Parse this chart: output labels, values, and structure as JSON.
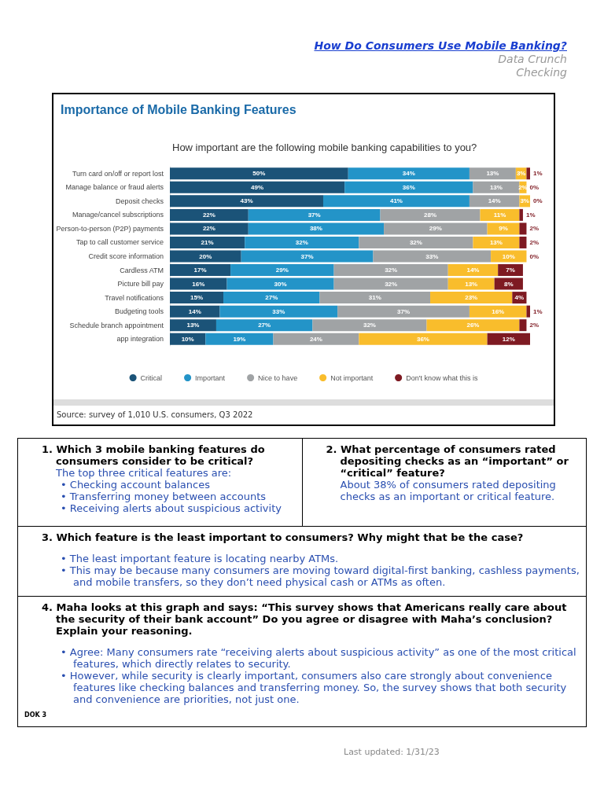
{
  "chart_data": {
    "type": "bar",
    "orientation": "horizontal",
    "stacked": true,
    "title": "Importance of Mobile Banking Features",
    "subtitle": "How important are the following mobile banking capabilities to you?",
    "categories": [
      "Turn card on/off or report lost",
      "Manage balance or fraud alerts",
      "Deposit checks",
      "Manage/cancel subscriptions",
      "Person-to-person (P2P) payments",
      "Tap to call customer service",
      "Credit score information",
      "Cardless ATM",
      "Picture bill pay",
      "Travel notifications",
      "Budgeting tools",
      "Schedule branch appointment",
      "app integration"
    ],
    "series": [
      {
        "name": "Critical",
        "color": "#1b5378",
        "values": [
          50,
          49,
          43,
          22,
          22,
          21,
          20,
          17,
          16,
          15,
          14,
          13,
          10
        ],
        "value_labels": [
          "50%",
          "49%",
          "43%",
          "22%",
          "22%",
          "21%",
          "20%",
          "17%",
          "16%",
          "15%",
          "14%",
          "13%",
          "10%"
        ]
      },
      {
        "name": "Important",
        "color": "#2394c8",
        "values": [
          34,
          36,
          41,
          37,
          38,
          32,
          37,
          29,
          30,
          27,
          33,
          27,
          19
        ],
        "value_labels": [
          "34%",
          "36%",
          "41%",
          "37%",
          "38%",
          "32%",
          "37%",
          "29%",
          "30%",
          "27%",
          "33%",
          "27%",
          "19%"
        ]
      },
      {
        "name": "Nice to have",
        "color": "#a0a3a5",
        "values": [
          13,
          13,
          14,
          28,
          29,
          32,
          33,
          32,
          32,
          31,
          37,
          32,
          24
        ],
        "value_labels": [
          "13%",
          "13%",
          "14%",
          "28%",
          "29%",
          "32%",
          "33%",
          "32%",
          "32%",
          "31%",
          "37%",
          "32%",
          "24%"
        ]
      },
      {
        "name": "Not important",
        "color": "#f9bd2c",
        "values": [
          3,
          2,
          3,
          11,
          9,
          13,
          10,
          14,
          13,
          23,
          16,
          26,
          36
        ],
        "value_labels": [
          "3%",
          "2%",
          "3%",
          "11%",
          "9%",
          "13%",
          "10%",
          "14%",
          "13%",
          "23%",
          "16%",
          "26%",
          "36%"
        ]
      },
      {
        "name": "Don't know what this is",
        "color": "#7e1a22",
        "values": [
          1,
          0,
          0,
          1,
          2,
          2,
          0,
          7,
          8,
          4,
          1,
          2,
          12
        ],
        "value_labels": [
          "1%",
          "0%",
          "0%",
          "1%",
          "2%",
          "2%",
          "0%",
          "7%",
          "8%",
          "4%",
          "1%",
          "2%",
          "12%"
        ]
      }
    ],
    "legend": "bottom",
    "annotations": [
      "How Do Consumers Use Mobile Banking?",
      "Data Crunch",
      "Checking",
      "Source: survey of 1,010 U.S. consumers, Q3 2022",
      "1. Which 3 mobile banking features do consumers consider to be critical?",
      "The top three critical features are:",
      "• Checking account balances",
      "• Transferring money between accounts",
      "• Receiving alerts about suspicious activity",
      "2. What percentage of consumers rated depositing checks as an “important” or “critical” feature?",
      "About 38% of consumers rated depositing checks as an important or critical feature.",
      "3. Which feature is the least important to consumers? Why might that be the case?",
      "• The least important feature is locating nearby ATMs.",
      "• This may be because many consumers are moving toward digital-first banking, cashless payments, and mobile transfers, so they don’t need physical cash or ATMs as often.",
      "4. Maha looks at this graph and says: “This survey shows that Americans really care about the security of their bank account” Do you agree or disagree with Maha’s conclusion? Explain your reasoning.",
      "• Agree: Many consumers rate “receiving alerts about suspicious activity” as one of the most critical features, which directly relates to security.",
      "• However, while security is clearly important, consumers also care strongly about convenience features like checking balances and transferring money. So, the survey shows that both security and convenience are priorities, not just one.",
      "DOK 3",
      "Last updated: 1/31/23"
    ]
  }
}
